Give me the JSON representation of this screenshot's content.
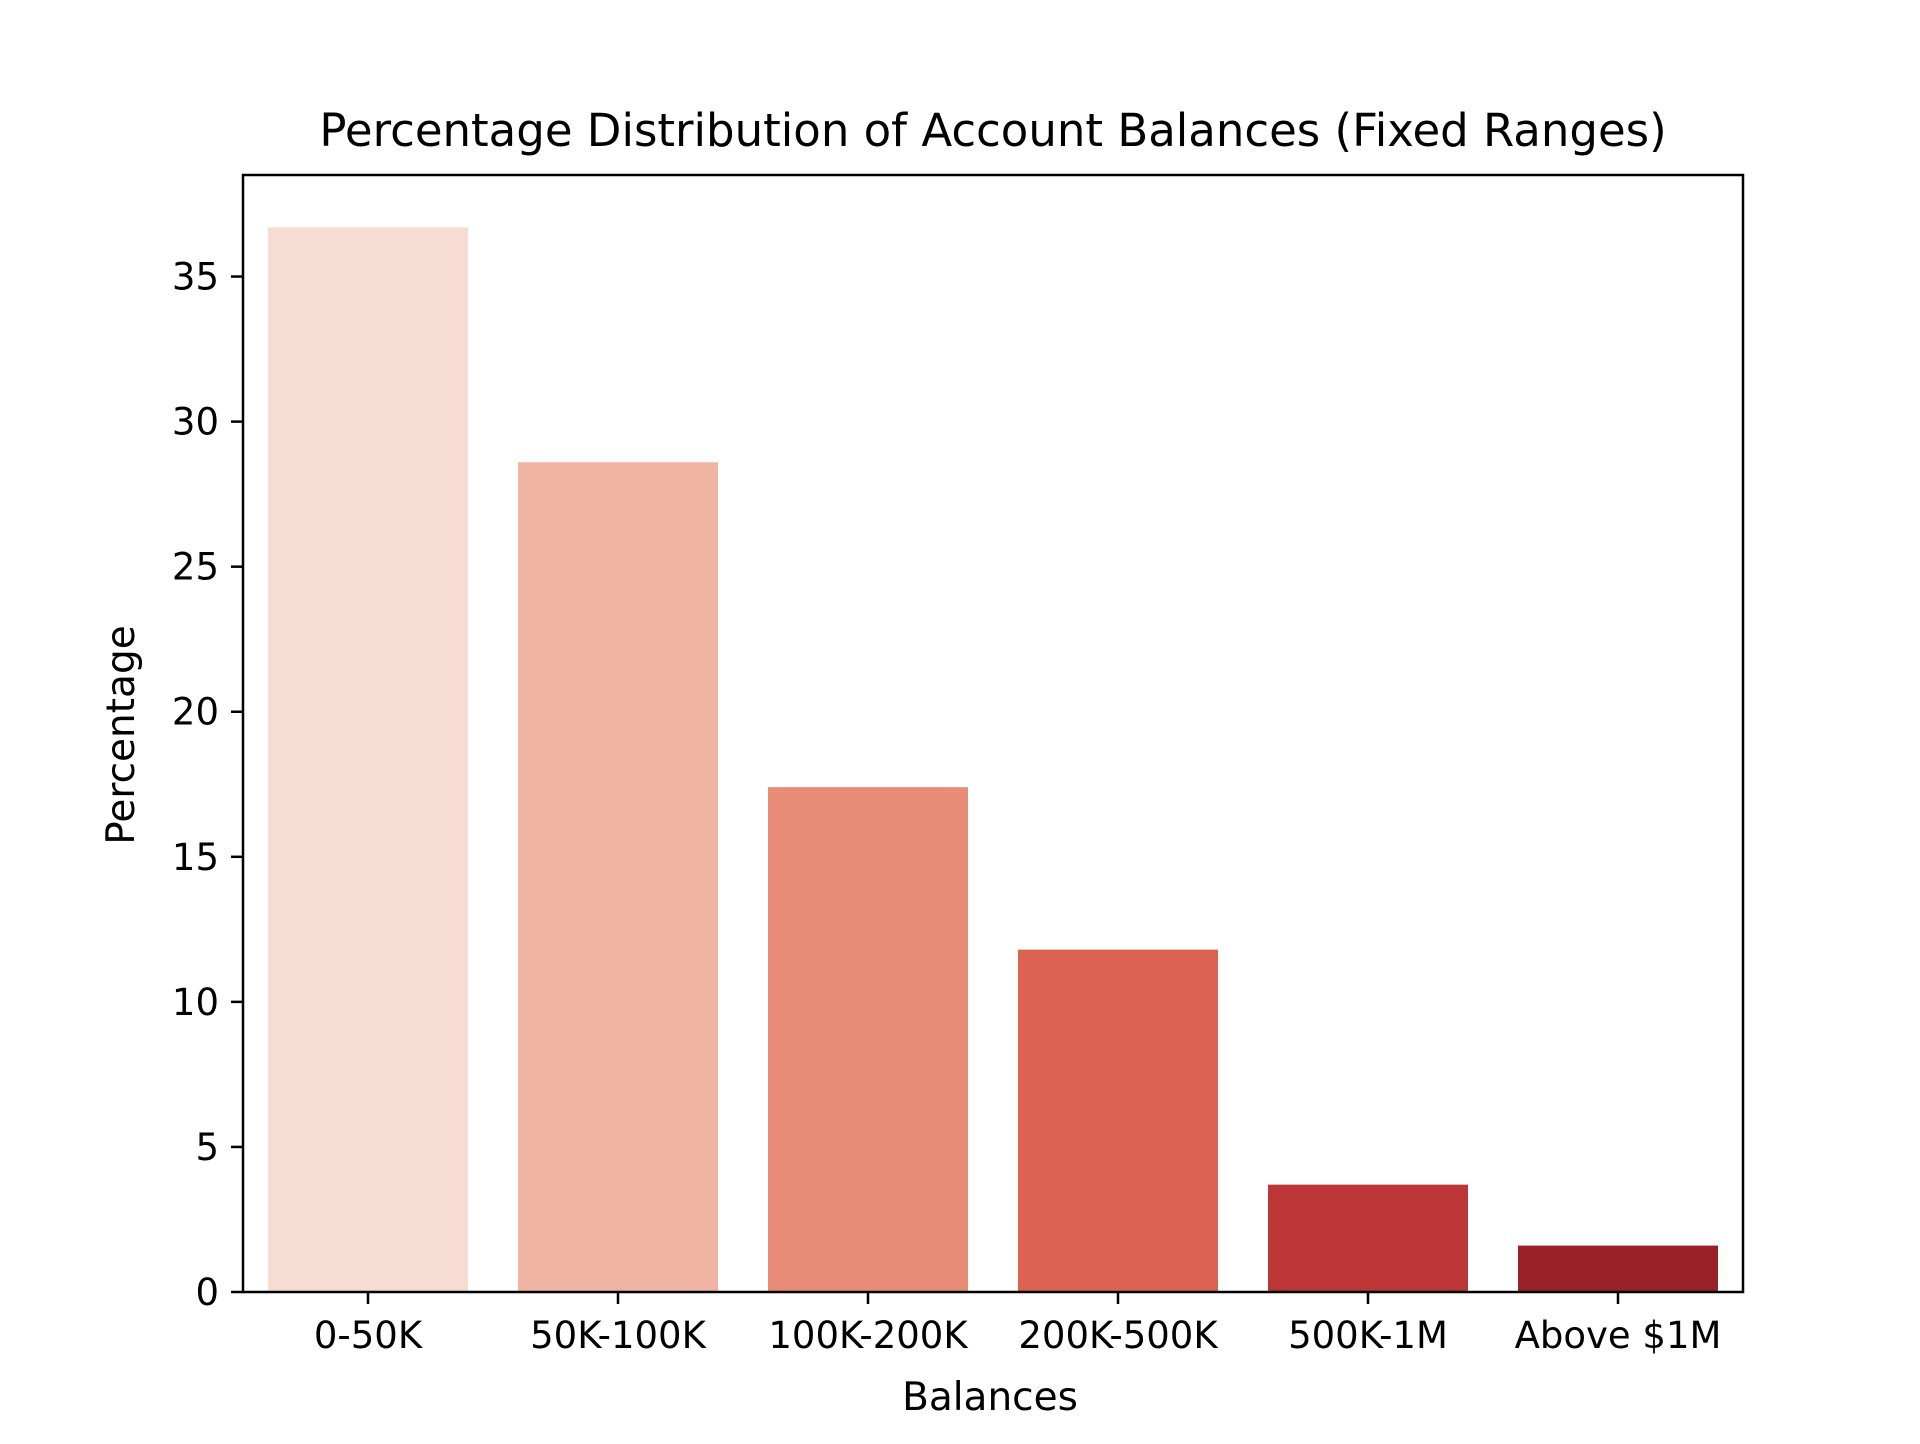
{
  "chart_data": {
    "type": "bar",
    "title": "Percentage Distribution of Account Balances (Fixed Ranges)",
    "xlabel": "Balances",
    "ylabel": "Percentage",
    "categories": [
      "0-50K",
      "50K-100K",
      "100K-200K",
      "200K-500K",
      "500K-1M",
      "Above $1M"
    ],
    "values": [
      36.7,
      28.6,
      17.4,
      11.8,
      3.7,
      1.6
    ],
    "colors": [
      "#f7dcd1",
      "#f0b4a2",
      "#e78d77",
      "#dc6252",
      "#bc3638",
      "#9a2129"
    ],
    "ylim": [
      0,
      38.5
    ],
    "yticks": [
      0,
      5,
      10,
      15,
      20,
      25,
      30,
      35
    ],
    "grid": false,
    "legend": "none"
  }
}
